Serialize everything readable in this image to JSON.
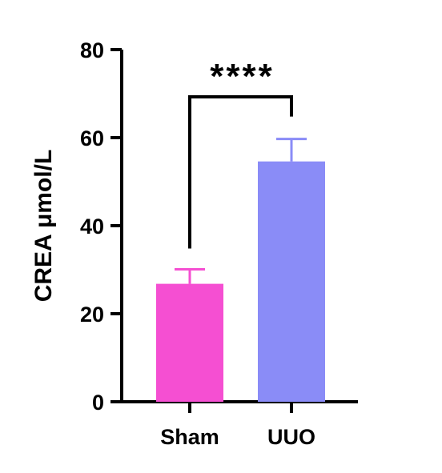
{
  "chart_data": {
    "type": "bar",
    "categories": [
      "Sham",
      "UUO"
    ],
    "values": [
      26.8,
      54.6
    ],
    "error_upper": [
      30.1,
      59.7
    ],
    "ylabel": "CREA μmol/L",
    "xlabel": "",
    "ylim": [
      0,
      80
    ],
    "yticks": [
      "0",
      "20",
      "40",
      "60",
      "80"
    ],
    "bar_colors": [
      "#f54fd2",
      "#8a8cf7"
    ],
    "significance": "****",
    "grid": false,
    "legend": "none"
  }
}
